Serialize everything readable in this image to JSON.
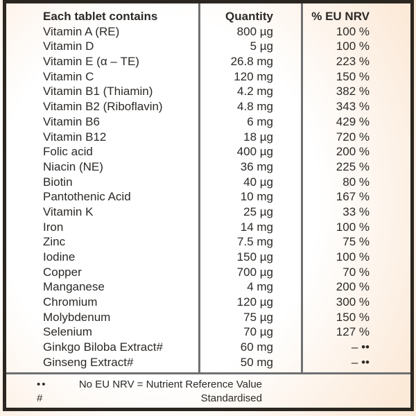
{
  "colors": {
    "edge_orange": "#f3b478",
    "center_white": "#fffefb",
    "border_dark": "#2b2620",
    "divider_gray": "#6f7072",
    "text_dark": "#2c2926"
  },
  "table": {
    "header": {
      "name": "Each tablet contains",
      "quantity": "Quantity",
      "nrv": "% EU NRV"
    },
    "rows": [
      {
        "name": "Vitamin A (RE)",
        "quantity": "800 µg",
        "nrv": "100 %"
      },
      {
        "name": "Vitamin D",
        "quantity": "5 µg",
        "nrv": "100 %"
      },
      {
        "name": "Vitamin E (α – TE)",
        "quantity": "26.8 mg",
        "nrv": "223 %"
      },
      {
        "name": "Vitamin C",
        "quantity": "120 mg",
        "nrv": "150 %"
      },
      {
        "name": "Vitamin B1 (Thiamin)",
        "quantity": "4.2 mg",
        "nrv": "382 %"
      },
      {
        "name": "Vitamin B2 (Riboflavin)",
        "quantity": "4.8 mg",
        "nrv": "343 %"
      },
      {
        "name": "Vitamin B6",
        "quantity": "6 mg",
        "nrv": "429 %"
      },
      {
        "name": "Vitamin B12",
        "quantity": "18 µg",
        "nrv": "720 %"
      },
      {
        "name": "Folic acid",
        "quantity": "400 µg",
        "nrv": "200 %"
      },
      {
        "name": "Niacin (NE)",
        "quantity": "36 mg",
        "nrv": "225 %"
      },
      {
        "name": "Biotin",
        "quantity": "40 µg",
        "nrv": "80 %"
      },
      {
        "name": "Pantothenic Acid",
        "quantity": "10 mg",
        "nrv": "167 %"
      },
      {
        "name": "Vitamin K",
        "quantity": "25 µg",
        "nrv": "33 %"
      },
      {
        "name": "Iron",
        "quantity": "14 mg",
        "nrv": "100 %"
      },
      {
        "name": "Zinc",
        "quantity": "7.5 mg",
        "nrv": "75 %"
      },
      {
        "name": "Iodine",
        "quantity": "150 µg",
        "nrv": "100 %"
      },
      {
        "name": "Copper",
        "quantity": "700 µg",
        "nrv": "70 %"
      },
      {
        "name": "Manganese",
        "quantity": "4 mg",
        "nrv": "200 %"
      },
      {
        "name": "Chromium",
        "quantity": "120 µg",
        "nrv": "300 %"
      },
      {
        "name": "Molybdenum",
        "quantity": "75 µg",
        "nrv": "150 %"
      },
      {
        "name": "Selenium",
        "quantity": "70 µg",
        "nrv": "127 %"
      },
      {
        "name": "Ginkgo Biloba Extract#",
        "quantity": "60 mg",
        "nrv": "– ••"
      },
      {
        "name": "Ginseng Extract#",
        "quantity": "50 mg",
        "nrv": "– ••"
      }
    ]
  },
  "footnotes": [
    {
      "marker": "••",
      "text": "No EU NRV = Nutrient Reference Value"
    },
    {
      "marker": "#",
      "text": "Standardised"
    }
  ]
}
